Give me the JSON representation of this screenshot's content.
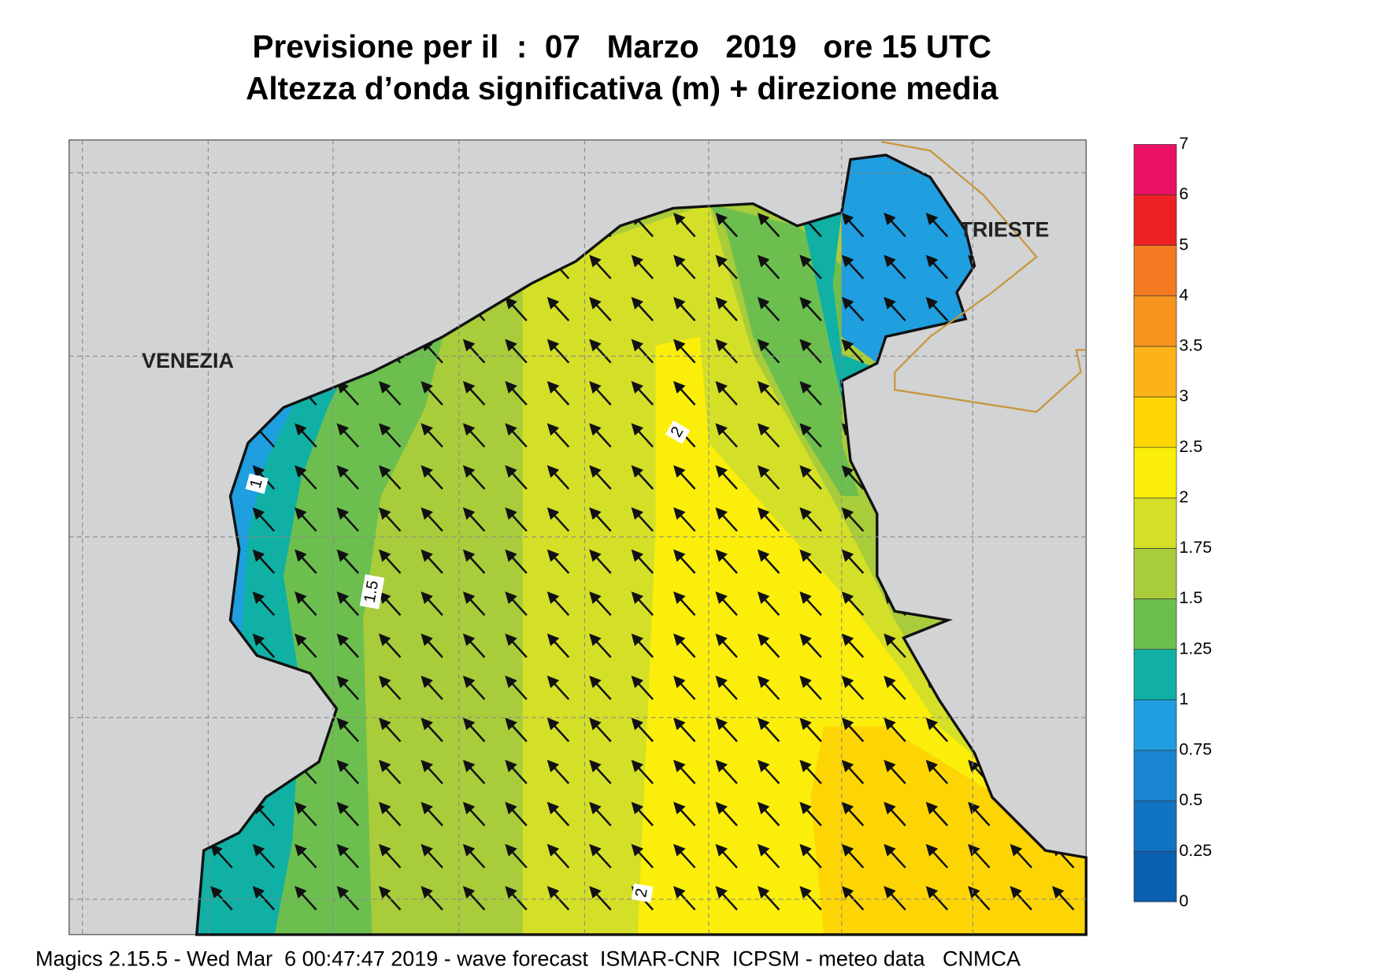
{
  "header": {
    "title": "Previsione per il  :  07   Marzo   2019   ore 15 UTC",
    "subtitle": "Altezza d’onda significativa (m) + direzione media"
  },
  "map": {
    "places": [
      "VENEZIA",
      "TRIESTE"
    ],
    "contour_labels": [
      "1",
      "1.5",
      "2",
      "2"
    ]
  },
  "legend": {
    "levels": [
      0,
      0.25,
      0.5,
      0.75,
      1,
      1.25,
      1.5,
      1.75,
      2,
      2.5,
      3,
      3.5,
      4,
      5,
      6,
      7
    ],
    "colors": [
      "#0a5fb0",
      "#1173c3",
      "#1a86d2",
      "#1f9ee0",
      "#10b0a5",
      "#6cbf4f",
      "#a9cc3a",
      "#d4df28",
      "#fbee0a",
      "#fdd504",
      "#fbb317",
      "#f7941d",
      "#f37a20",
      "#ed2124",
      "#eb1164"
    ]
  },
  "footer": "Magics 2.15.5 - Wed Mar  6 00:47:47 2019 - wave forecast  ISMAR-CNR  ICPSM - meteo data   CNMCA"
}
